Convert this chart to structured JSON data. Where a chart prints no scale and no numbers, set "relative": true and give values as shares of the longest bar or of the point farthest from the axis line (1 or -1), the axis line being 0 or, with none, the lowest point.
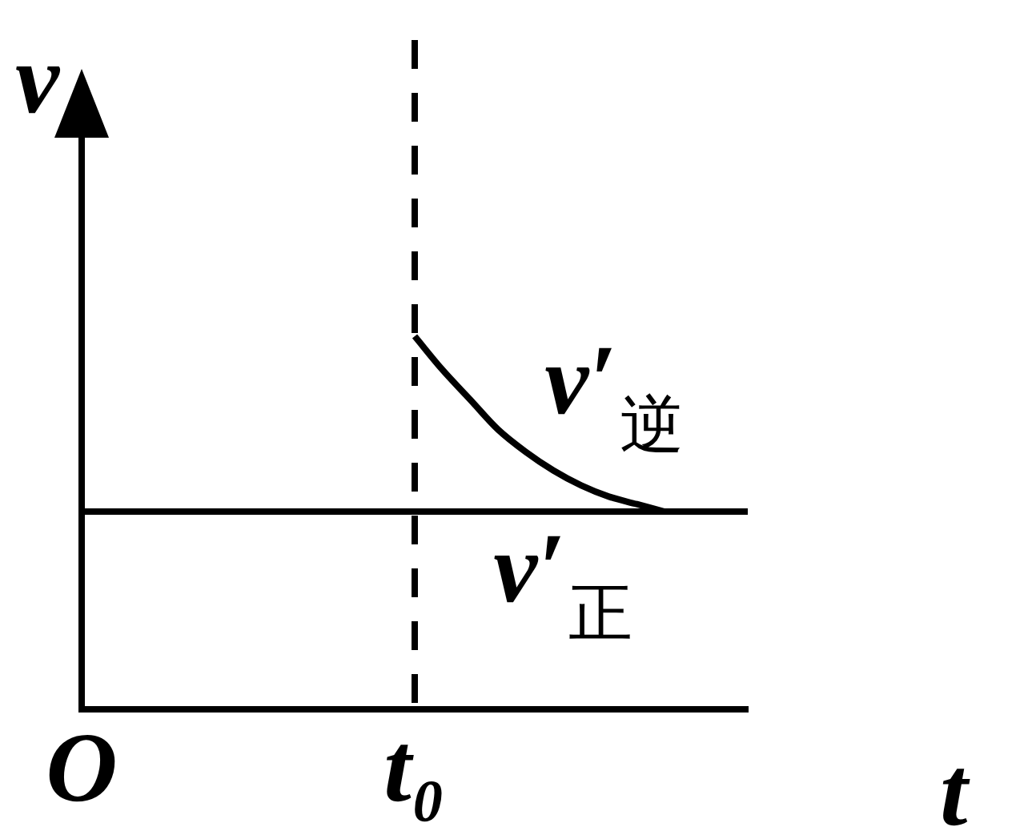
{
  "chart_data": {
    "type": "line",
    "relative": true,
    "xlabel": "t",
    "ylabel": "v",
    "categories": [
      "O",
      null,
      null,
      null,
      null,
      null,
      null,
      null,
      null,
      null,
      null,
      null,
      "t₀",
      null,
      null,
      null,
      null,
      null,
      null,
      null,
      null,
      null,
      null,
      null,
      null
    ],
    "tick_labels": "x",
    "ref_lines": [
      {
        "axis": "x",
        "value": "t₀",
        "color": "#000000",
        "line_style": "dashed"
      }
    ],
    "series": [
      {
        "name": "v′$_{逆}$",
        "color": "#000000",
        "values": [
          null,
          null,
          null,
          null,
          null,
          null,
          null,
          null,
          null,
          null,
          null,
          null,
          1,
          0.91,
          0.83,
          0.75,
          0.69,
          0.64,
          0.6,
          0.57,
          0.55,
          0.53,
          null,
          null,
          null
        ]
      },
      {
        "name": "v′$_{正}$",
        "color": "#000000",
        "values": [
          0.53,
          0.53,
          0.53,
          0.53,
          0.53,
          0.53,
          0.53,
          0.53,
          0.53,
          0.53,
          0.53,
          0.53,
          0.53,
          0.53,
          0.53,
          0.53,
          0.53,
          0.53,
          0.53,
          0.53,
          0.53,
          0.53,
          0.53,
          0.53,
          0.53
        ]
      }
    ]
  }
}
